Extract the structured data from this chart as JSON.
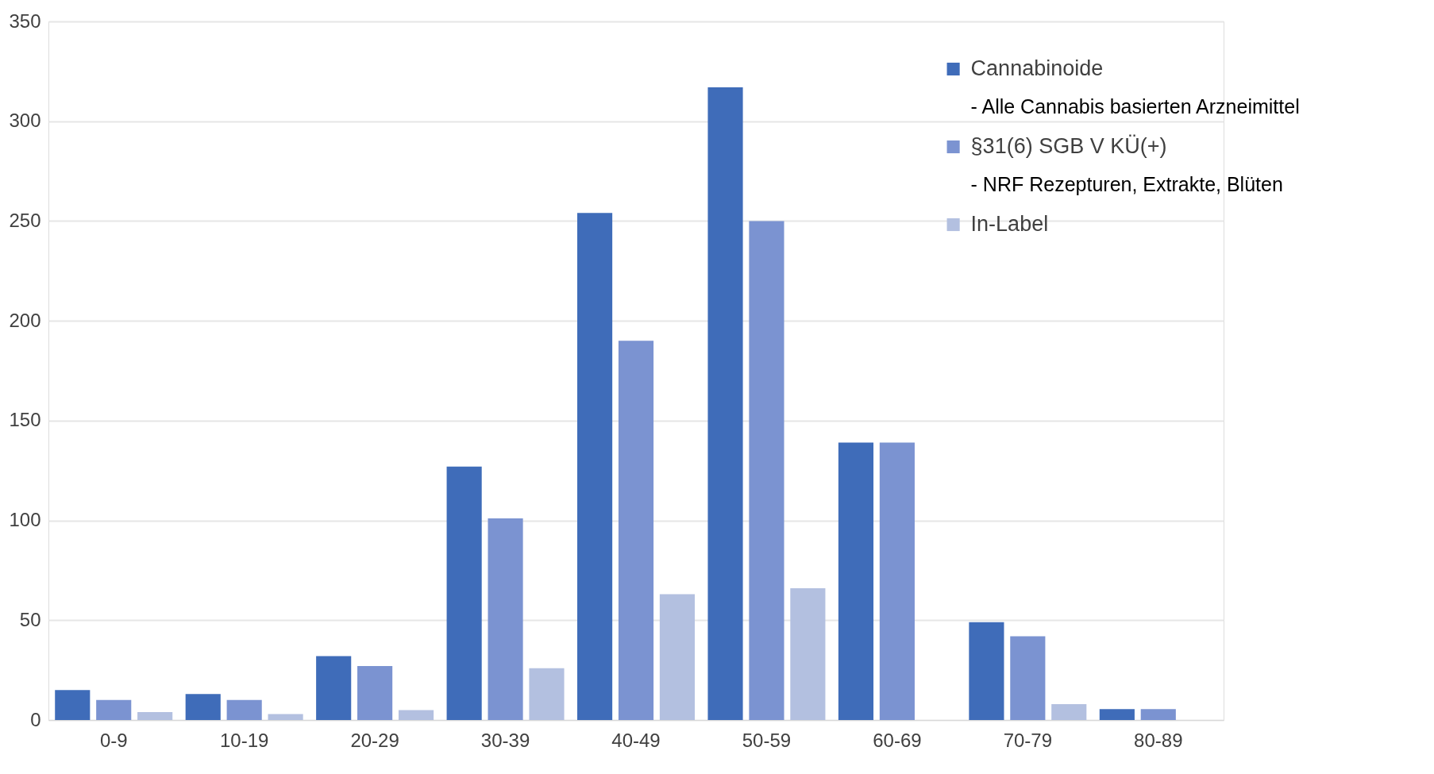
{
  "chart_data": {
    "type": "bar",
    "categories": [
      "0-9",
      "10-19",
      "20-29",
      "30-39",
      "40-49",
      "50-59",
      "60-69",
      "70-79",
      "80-89"
    ],
    "series": [
      {
        "name": "Cannabinoide",
        "color": "#3f6cb9",
        "values": [
          15,
          13,
          32,
          127,
          254,
          317,
          139,
          49,
          5.5
        ]
      },
      {
        "name": "§31(6) SGB V KÜ(+)",
        "color": "#7b93d1",
        "values": [
          10,
          10,
          27,
          101,
          190,
          250,
          139,
          42,
          5.5
        ]
      },
      {
        "name": "In-Label",
        "color": "#b3c0e0",
        "values": [
          4,
          3,
          5,
          26,
          63,
          66,
          0,
          8,
          0
        ]
      }
    ],
    "annotations": [
      "- Alle Cannabis basierten Arzneimittel",
      "- NRF Rezepturen, Extrakte, Blüten"
    ],
    "ylim": [
      0,
      350
    ],
    "yticks": [
      0,
      50,
      100,
      150,
      200,
      250,
      300,
      350
    ],
    "grid": "y",
    "legend": "top right"
  }
}
